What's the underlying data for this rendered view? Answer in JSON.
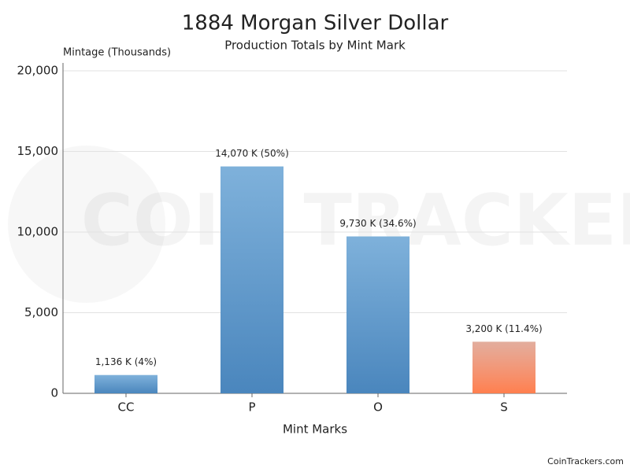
{
  "chart_data": {
    "type": "bar",
    "title": "1884 Morgan Silver Dollar",
    "subtitle": "Production Totals by Mint Mark",
    "y_label": "Mintage (Thousands)",
    "x_label": "Mint Marks",
    "categories": [
      "CC",
      "P",
      "O",
      "S"
    ],
    "values": [
      1136,
      14070,
      9730,
      3200
    ],
    "value_labels": [
      "1,136 K (4%)",
      "14,070 K (50%)",
      "9,730 K (34.6%)",
      "3,200 K (11.4%)"
    ],
    "colors": [
      "#4a86bd",
      "#4a86bd",
      "#4a86bd",
      "#ff7f4e"
    ],
    "ylim": [
      0,
      20000
    ],
    "yticks": [
      0,
      {
        "value": 5000,
        "label": "5,000"
      },
      {
        "value": 10000,
        "label": "10,000"
      },
      {
        "value": 15000,
        "label": "15,000"
      },
      {
        "value": 20000,
        "label": "20,000"
      }
    ],
    "grid": true
  },
  "watermark": "COIN TRACKERS",
  "footer": "CoinTrackers.com"
}
